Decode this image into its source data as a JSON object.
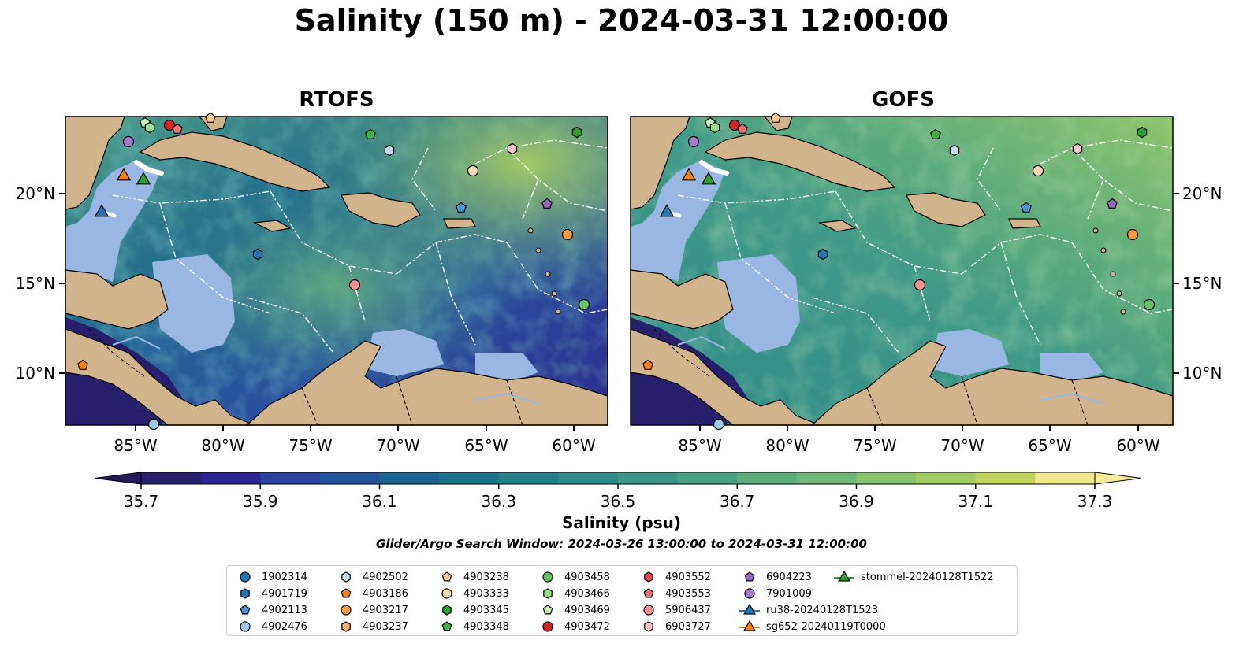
{
  "title": "Salinity (150 m) - 2024-03-31 12:00:00",
  "panels": [
    {
      "title": "RTOFS"
    },
    {
      "title": "GOFS"
    }
  ],
  "axes": {
    "x_ticks": [
      "85°W",
      "80°W",
      "75°W",
      "70°W",
      "65°W",
      "60°W"
    ],
    "y_ticks": [
      "20°N",
      "15°N",
      "10°N"
    ]
  },
  "colorbar": {
    "label": "Salinity (psu)",
    "ticks": [
      "35.7",
      "35.9",
      "36.1",
      "36.3",
      "36.5",
      "36.7",
      "36.9",
      "37.1",
      "37.3"
    ],
    "colors": [
      "#271f6b",
      "#2c228f",
      "#2b3f9c",
      "#22539a",
      "#1d6490",
      "#1b7289",
      "#227e88",
      "#2f8b88",
      "#3b9688",
      "#49a285",
      "#5bad7f",
      "#6fb877",
      "#88c26d",
      "#a2cb62",
      "#bfd55d",
      "#efea8d"
    ]
  },
  "search_window": "Glider/Argo Search Window: 2024-03-26 13:00:00 to 2024-03-31 12:00:00",
  "legend": {
    "items": [
      {
        "label": "1902314",
        "marker": "circle",
        "color": "#1f77b4"
      },
      {
        "label": "4901719",
        "marker": "hexagon",
        "color": "#1f77b4"
      },
      {
        "label": "4902113",
        "marker": "pentagon",
        "color": "#4b94d6"
      },
      {
        "label": "4902476",
        "marker": "circle",
        "color": "#9ecae9"
      },
      {
        "label": "4902502",
        "marker": "hexagon",
        "color": "#c6dcf2"
      },
      {
        "label": "4903186",
        "marker": "pentagon",
        "color": "#ff7f0e"
      },
      {
        "label": "4903217",
        "marker": "circle",
        "color": "#ff9a3c"
      },
      {
        "label": "4903237",
        "marker": "hexagon",
        "color": "#ffae6b"
      },
      {
        "label": "4903238",
        "marker": "pentagon",
        "color": "#ffc994"
      },
      {
        "label": "4903333",
        "marker": "circle",
        "color": "#ffdcb4"
      },
      {
        "label": "4903345",
        "marker": "hexagon",
        "color": "#2ca02c"
      },
      {
        "label": "4903348",
        "marker": "pentagon",
        "color": "#3fb43f"
      },
      {
        "label": "4903458",
        "marker": "circle",
        "color": "#66c466"
      },
      {
        "label": "4903466",
        "marker": "hexagon",
        "color": "#98df8a"
      },
      {
        "label": "4903469",
        "marker": "pentagon",
        "color": "#c7f0bd"
      },
      {
        "label": "4903472",
        "marker": "circle",
        "color": "#d62728"
      },
      {
        "label": "4903552",
        "marker": "hexagon",
        "color": "#e34a4a"
      },
      {
        "label": "4903553",
        "marker": "pentagon",
        "color": "#ef7070"
      },
      {
        "label": "5906437",
        "marker": "circle",
        "color": "#f79090"
      },
      {
        "label": "6903727",
        "marker": "hexagon",
        "color": "#fbc6c6"
      },
      {
        "label": "6904223",
        "marker": "pentagon",
        "color": "#9467bd"
      },
      {
        "label": "7901009",
        "marker": "circle",
        "color": "#a77ccc"
      },
      {
        "label": "ru38-20240128T1523",
        "marker": "triangle",
        "color": "#1f77b4"
      },
      {
        "label": "sg652-20240119T0000",
        "marker": "triangle",
        "color": "#ff7f0e"
      },
      {
        "label": "stommel-20240128T1522",
        "marker": "triangle",
        "color": "#2ca02c"
      }
    ]
  }
}
